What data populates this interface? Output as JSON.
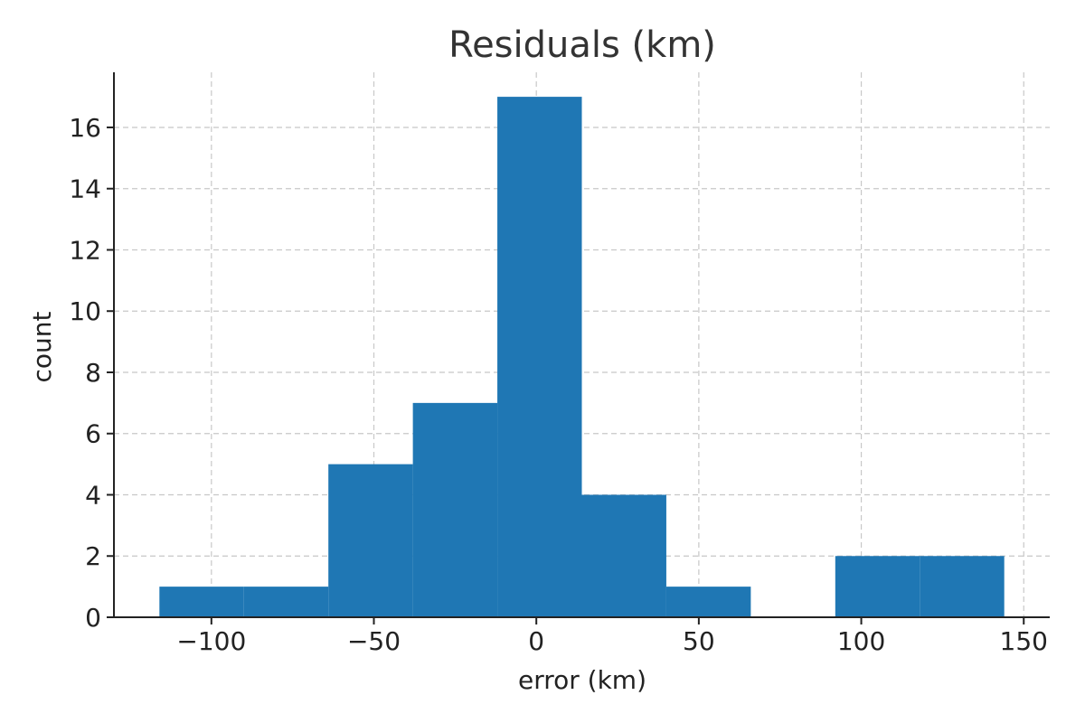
{
  "chart_data": {
    "type": "bar",
    "title": "Residuals (km)",
    "xlabel": "error (km)",
    "ylabel": "count",
    "bin_edges": [
      -116,
      -90,
      -64,
      -38,
      -12,
      14,
      40,
      66,
      92,
      118,
      144
    ],
    "values": [
      1,
      1,
      5,
      7,
      17,
      4,
      1,
      0,
      2,
      2
    ],
    "xlim": [
      -130,
      158
    ],
    "ylim": [
      0,
      17.8
    ],
    "x_ticks": [
      -100,
      -50,
      0,
      50,
      100,
      150
    ],
    "x_tick_labels": [
      "−100",
      "−50",
      "0",
      "50",
      "100",
      "150"
    ],
    "y_ticks": [
      0,
      2,
      4,
      6,
      8,
      10,
      12,
      14,
      16
    ],
    "y_tick_labels": [
      "0",
      "2",
      "4",
      "6",
      "8",
      "10",
      "12",
      "14",
      "16"
    ],
    "grid": true,
    "bar_color": "#1f77b4"
  }
}
